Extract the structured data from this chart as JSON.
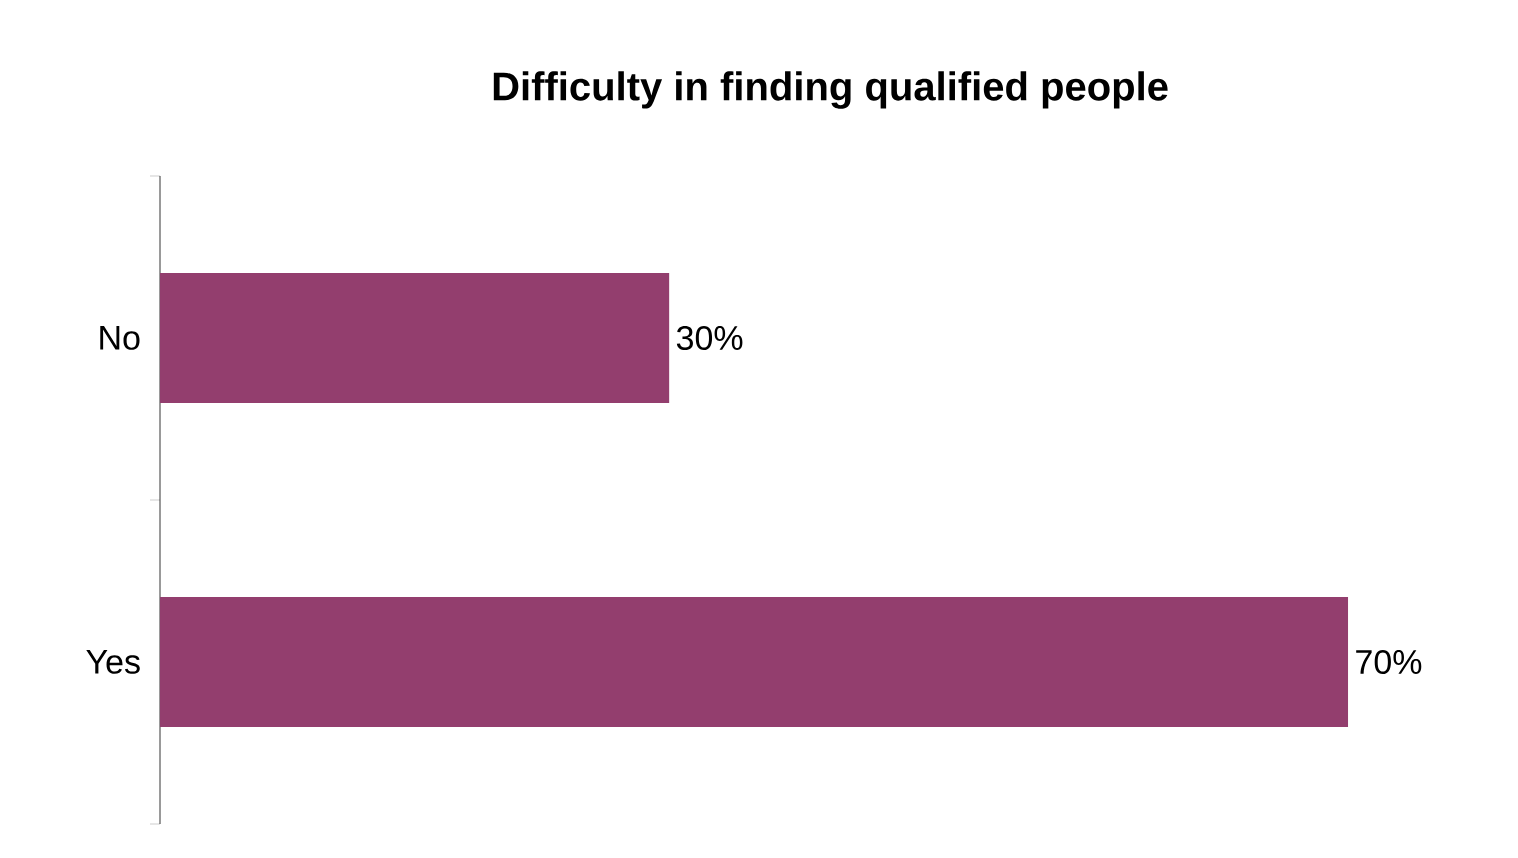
{
  "chart_data": {
    "type": "bar",
    "orientation": "horizontal",
    "title": "Difficulty in finding qualified people",
    "categories": [
      "No",
      "Yes"
    ],
    "values": [
      30,
      70
    ],
    "value_labels": [
      "30%",
      "70%"
    ],
    "color": "#933e6e"
  }
}
